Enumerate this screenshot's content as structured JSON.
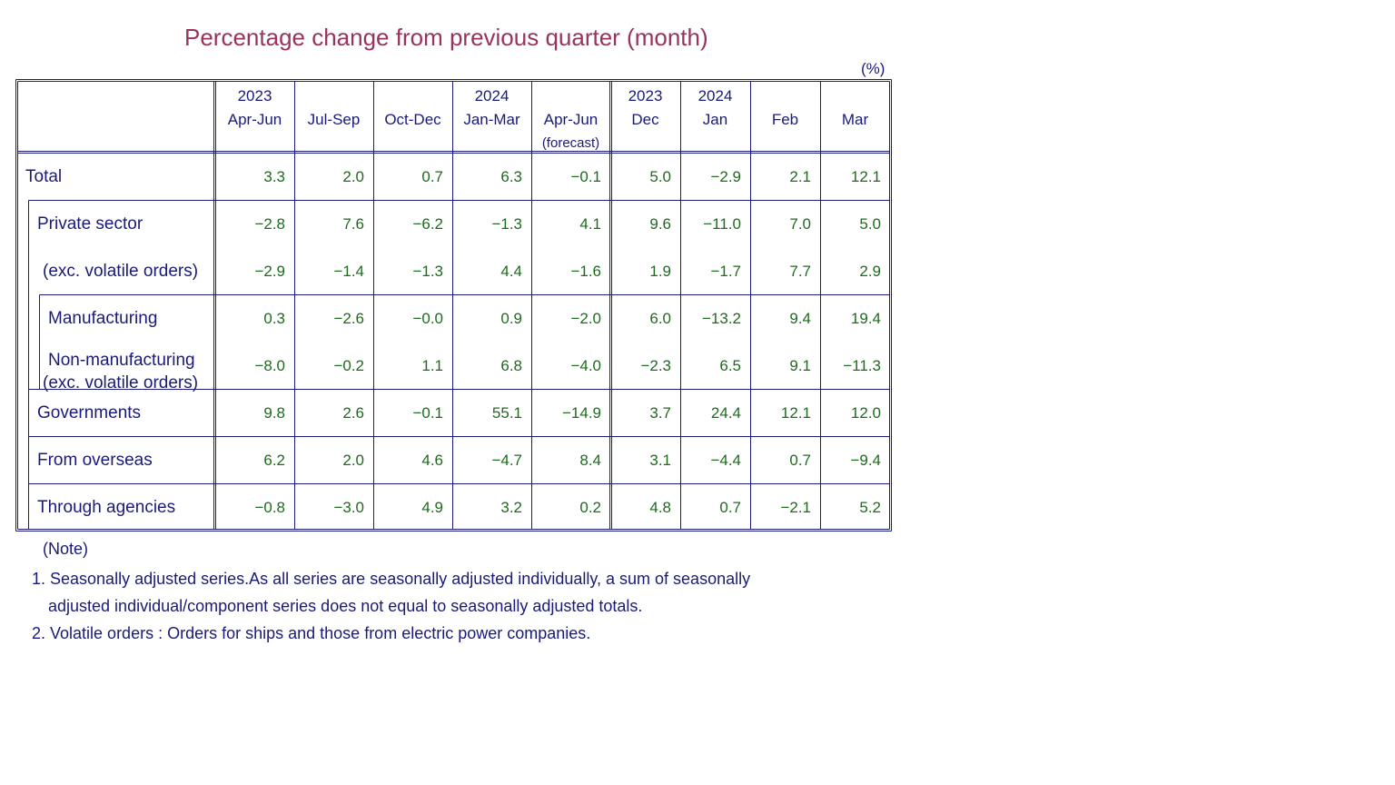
{
  "title": "Percentage change from previous quarter (month)",
  "unit": "(%)",
  "table": {
    "headers": [
      {
        "year": "2023",
        "period": "Apr-Jun",
        "extra": ""
      },
      {
        "year": "",
        "period": "Jul-Sep",
        "extra": ""
      },
      {
        "year": "",
        "period": "Oct-Dec",
        "extra": ""
      },
      {
        "year": "2024",
        "period": "Jan-Mar",
        "extra": ""
      },
      {
        "year": "",
        "period": "Apr-Jun",
        "extra": "(forecast)"
      },
      {
        "year": "2023",
        "period": "Dec",
        "extra": ""
      },
      {
        "year": "2024",
        "period": "Jan",
        "extra": ""
      },
      {
        "year": "",
        "period": "Feb",
        "extra": ""
      },
      {
        "year": "",
        "period": "Mar",
        "extra": ""
      }
    ],
    "rows": [
      {
        "label": "Total",
        "label2": "",
        "values": [
          "3.3",
          "2.0",
          "0.7",
          "6.3",
          "−0.1",
          "5.0",
          "−2.9",
          "2.1",
          "12.1"
        ]
      },
      {
        "label": "Private sector",
        "label2": "",
        "values": [
          "−2.8",
          "7.6",
          "−6.2",
          "−1.3",
          "4.1",
          "9.6",
          "−11.0",
          "7.0",
          "5.0"
        ]
      },
      {
        "label": "(exc. volatile orders)",
        "label2": "",
        "values": [
          "−2.9",
          "−1.4",
          "−1.3",
          "4.4",
          "−1.6",
          "1.9",
          "−1.7",
          "7.7",
          "2.9"
        ]
      },
      {
        "label": "Manufacturing",
        "label2": "",
        "values": [
          "0.3",
          "−2.6",
          "−0.0",
          "0.9",
          "−2.0",
          "6.0",
          "−13.2",
          "9.4",
          "19.4"
        ]
      },
      {
        "label": "Non-manufacturing",
        "label2": "(exc. volatile orders)",
        "values": [
          "−8.0",
          "−0.2",
          "1.1",
          "6.8",
          "−4.0",
          "−2.3",
          "6.5",
          "9.1",
          "−11.3"
        ]
      },
      {
        "label": "Governments",
        "label2": "",
        "values": [
          "9.8",
          "2.6",
          "−0.1",
          "55.1",
          "−14.9",
          "3.7",
          "24.4",
          "12.1",
          "12.0"
        ]
      },
      {
        "label": "From overseas",
        "label2": "",
        "values": [
          "6.2",
          "2.0",
          "4.6",
          "−4.7",
          "8.4",
          "3.1",
          "−4.4",
          "0.7",
          "−9.4"
        ]
      },
      {
        "label": "Through agencies",
        "label2": "",
        "values": [
          "−0.8",
          "−3.0",
          "4.9",
          "3.2",
          "0.2",
          "4.8",
          "0.7",
          "−2.1",
          "5.2"
        ]
      }
    ]
  },
  "notes": {
    "heading": "(Note)",
    "note1_line1": "1. Seasonally adjusted series.As all series are seasonally adjusted individually,  a sum of seasonally",
    "note1_line2": "adjusted individual/component series does not equal to seasonally adjusted totals.",
    "note2": "2. Volatile orders : Orders for ships and those from electric power companies."
  }
}
